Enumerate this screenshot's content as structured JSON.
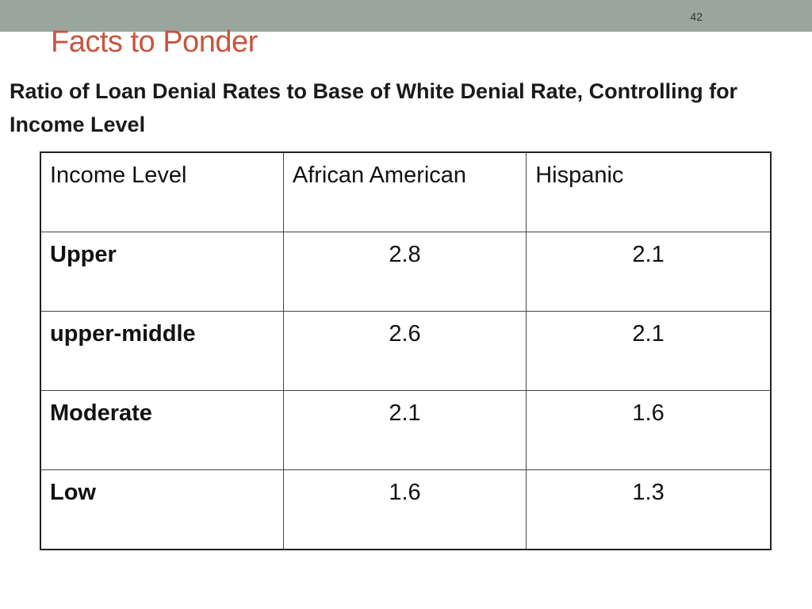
{
  "slide": {
    "number": "42",
    "title": "Facts to Ponder",
    "subtitle": "Ratio of Loan Denial Rates to Base of White Denial Rate, Controlling for Income Level",
    "colors": {
      "band": "#98a69e",
      "title": "#c8553d",
      "text": "#1a1a1a"
    }
  },
  "table": {
    "headers": [
      "Income Level",
      "African American",
      "Hispanic"
    ],
    "rows": [
      {
        "label": "Upper",
        "values": [
          "2.8",
          "2.1"
        ]
      },
      {
        "label": "upper-middle",
        "values": [
          "2.6",
          "2.1"
        ]
      },
      {
        "label": "Moderate",
        "values": [
          "2.1",
          "1.6"
        ]
      },
      {
        "label": "Low",
        "values": [
          "1.6",
          "1.3"
        ]
      }
    ]
  }
}
